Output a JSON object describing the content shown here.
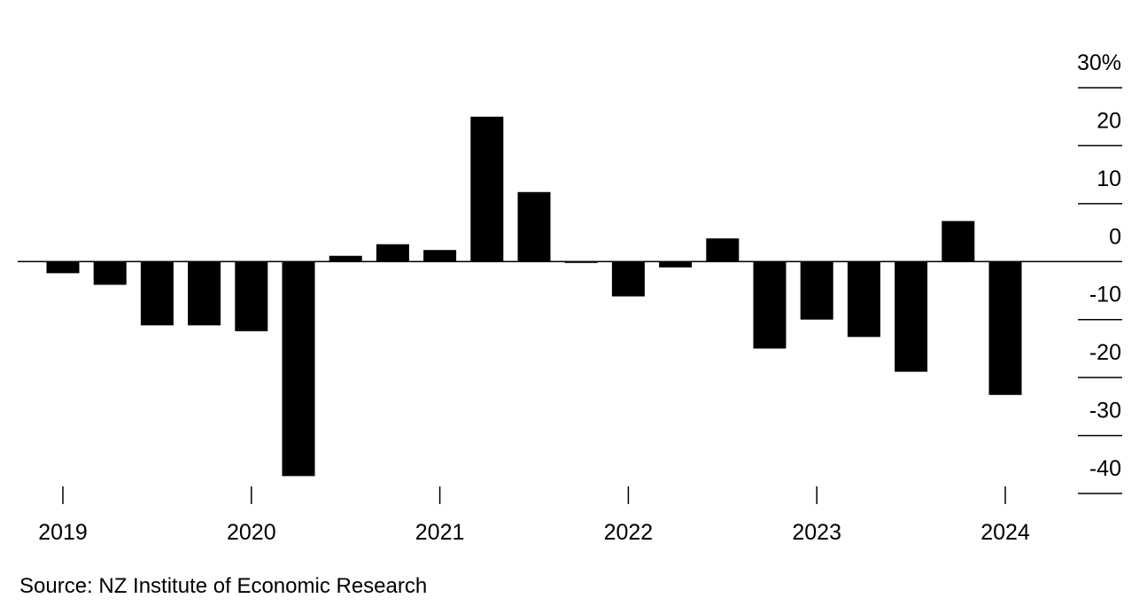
{
  "chart_data": {
    "type": "bar",
    "title": "",
    "xlabel": "",
    "ylabel": "",
    "ylim": [
      -40,
      30
    ],
    "y_ticks": [
      30,
      20,
      10,
      0,
      -10,
      -20,
      -30,
      -40
    ],
    "y_tick_labels": [
      "30%",
      "20",
      "10",
      "0",
      "-10",
      "-20",
      "-30",
      "-40"
    ],
    "x_tick_labels": [
      "2019",
      "2020",
      "2021",
      "2022",
      "2023",
      "2024"
    ],
    "categories": [
      "2019 Q1",
      "2019 Q2",
      "2019 Q3",
      "2019 Q4",
      "2020 Q1",
      "2020 Q2",
      "2020 Q3",
      "2020 Q4",
      "2021 Q1",
      "2021 Q2",
      "2021 Q3",
      "2021 Q4",
      "2022 Q1",
      "2022 Q2",
      "2022 Q3",
      "2022 Q4",
      "2023 Q1",
      "2023 Q2",
      "2023 Q3",
      "2023 Q4",
      "2024 Q1"
    ],
    "values": [
      -2,
      -4,
      -11,
      -11,
      -12,
      -37,
      1,
      3,
      2,
      25,
      12,
      0,
      -6,
      -1,
      4,
      -15,
      -10,
      -13,
      -19,
      7,
      -23
    ],
    "bar_color": "#000000",
    "axis_position": "right",
    "grid": false,
    "legend": "none"
  },
  "source_text": "Source: NZ Institute of Economic Research"
}
